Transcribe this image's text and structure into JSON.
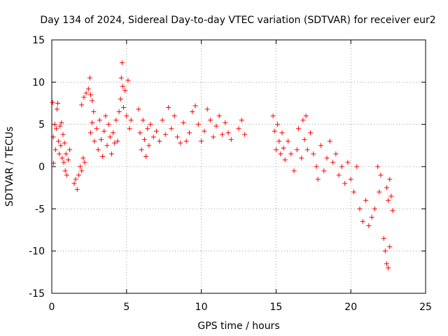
{
  "chart_data": {
    "type": "scatter",
    "title": "Day 134 of 2024, Sidereal Day-to-day VTEC variation (SDTVAR) for receiver eur2",
    "xlabel": "GPS time / hours",
    "ylabel": "SDTVAR / TECUs",
    "xlim": [
      0,
      25
    ],
    "ylim": [
      -15,
      15
    ],
    "xticks": [
      0,
      5,
      10,
      15,
      20,
      25
    ],
    "yticks": [
      -15,
      -10,
      -5,
      0,
      5,
      10,
      15
    ],
    "grid": true,
    "marker": "+",
    "marker_color": "#ff0000",
    "series": [
      {
        "name": "SDTVAR",
        "points": [
          [
            0.05,
            7.6
          ],
          [
            0.1,
            3.5
          ],
          [
            0.12,
            0.4
          ],
          [
            0.2,
            5.0
          ],
          [
            0.25,
            2.0
          ],
          [
            0.3,
            4.5
          ],
          [
            0.35,
            6.8
          ],
          [
            0.4,
            7.5
          ],
          [
            0.45,
            3.0
          ],
          [
            0.5,
            1.5
          ],
          [
            0.55,
            4.8
          ],
          [
            0.6,
            2.5
          ],
          [
            0.65,
            5.2
          ],
          [
            0.7,
            1.0
          ],
          [
            0.75,
            3.8
          ],
          [
            0.8,
            0.5
          ],
          [
            0.85,
            2.8
          ],
          [
            0.9,
            -0.5
          ],
          [
            0.95,
            1.5
          ],
          [
            1.0,
            -1.0
          ],
          [
            1.1,
            0.8
          ],
          [
            1.2,
            2.0
          ],
          [
            1.5,
            -2.0
          ],
          [
            1.6,
            -1.5
          ],
          [
            1.7,
            -2.7
          ],
          [
            1.8,
            -1.0
          ],
          [
            1.9,
            0.0
          ],
          [
            2.0,
            -0.5
          ],
          [
            2.1,
            1.0
          ],
          [
            2.2,
            0.5
          ],
          [
            2.0,
            7.3
          ],
          [
            2.15,
            8.2
          ],
          [
            2.3,
            8.7
          ],
          [
            2.45,
            9.2
          ],
          [
            2.55,
            10.5
          ],
          [
            2.6,
            8.5
          ],
          [
            2.7,
            7.8
          ],
          [
            2.8,
            6.5
          ],
          [
            2.6,
            4.0
          ],
          [
            2.7,
            5.2
          ],
          [
            2.85,
            3.0
          ],
          [
            3.0,
            4.5
          ],
          [
            3.1,
            2.0
          ],
          [
            3.2,
            5.5
          ],
          [
            3.3,
            3.2
          ],
          [
            3.4,
            1.2
          ],
          [
            3.5,
            4.2
          ],
          [
            3.6,
            6.0
          ],
          [
            3.7,
            2.5
          ],
          [
            3.8,
            5.0
          ],
          [
            3.9,
            3.5
          ],
          [
            4.0,
            1.5
          ],
          [
            4.1,
            4.0
          ],
          [
            4.2,
            2.8
          ],
          [
            4.3,
            5.5
          ],
          [
            4.4,
            3.0
          ],
          [
            4.5,
            6.5
          ],
          [
            4.6,
            8.0
          ],
          [
            4.65,
            10.5
          ],
          [
            4.7,
            12.3
          ],
          [
            4.75,
            9.5
          ],
          [
            4.8,
            7.0
          ],
          [
            4.9,
            9.0
          ],
          [
            5.0,
            6.0
          ],
          [
            5.1,
            10.2
          ],
          [
            5.2,
            4.5
          ],
          [
            5.3,
            5.5
          ],
          [
            5.8,
            6.8
          ],
          [
            5.9,
            4.0
          ],
          [
            6.0,
            2.0
          ],
          [
            6.1,
            5.5
          ],
          [
            6.2,
            3.2
          ],
          [
            6.3,
            1.2
          ],
          [
            6.4,
            4.5
          ],
          [
            6.5,
            2.5
          ],
          [
            6.6,
            5.0
          ],
          [
            6.8,
            3.5
          ],
          [
            7.0,
            4.2
          ],
          [
            7.2,
            3.0
          ],
          [
            7.4,
            5.5
          ],
          [
            7.6,
            3.8
          ],
          [
            7.8,
            7.0
          ],
          [
            8.0,
            4.5
          ],
          [
            8.2,
            6.0
          ],
          [
            8.4,
            3.5
          ],
          [
            8.6,
            2.8
          ],
          [
            8.8,
            5.2
          ],
          [
            9.0,
            3.0
          ],
          [
            9.2,
            4.0
          ],
          [
            9.4,
            6.5
          ],
          [
            9.6,
            7.2
          ],
          [
            9.8,
            5.0
          ],
          [
            10.0,
            3.0
          ],
          [
            10.2,
            4.2
          ],
          [
            10.4,
            6.8
          ],
          [
            10.6,
            5.5
          ],
          [
            10.8,
            3.5
          ],
          [
            11.0,
            4.8
          ],
          [
            11.2,
            6.0
          ],
          [
            11.4,
            3.8
          ],
          [
            11.6,
            5.2
          ],
          [
            11.8,
            4.0
          ],
          [
            12.0,
            3.2
          ],
          [
            12.5,
            4.5
          ],
          [
            12.7,
            5.5
          ],
          [
            12.9,
            3.8
          ],
          [
            14.8,
            6.0
          ],
          [
            14.9,
            4.2
          ],
          [
            15.0,
            2.0
          ],
          [
            15.1,
            5.0
          ],
          [
            15.2,
            3.0
          ],
          [
            15.3,
            1.5
          ],
          [
            15.4,
            4.0
          ],
          [
            15.5,
            2.2
          ],
          [
            15.6,
            0.8
          ],
          [
            15.8,
            3.0
          ],
          [
            16.0,
            1.5
          ],
          [
            16.2,
            -0.5
          ],
          [
            16.4,
            2.0
          ],
          [
            16.5,
            4.5
          ],
          [
            16.7,
            1.0
          ],
          [
            16.8,
            5.5
          ],
          [
            16.9,
            3.2
          ],
          [
            17.0,
            6.0
          ],
          [
            17.1,
            2.0
          ],
          [
            17.3,
            4.0
          ],
          [
            17.5,
            1.5
          ],
          [
            17.7,
            0.0
          ],
          [
            17.8,
            -1.5
          ],
          [
            18.0,
            2.5
          ],
          [
            18.2,
            -0.5
          ],
          [
            18.4,
            1.0
          ],
          [
            18.6,
            3.0
          ],
          [
            18.8,
            0.5
          ],
          [
            19.0,
            1.5
          ],
          [
            19.2,
            -1.0
          ],
          [
            19.4,
            0.0
          ],
          [
            19.6,
            -2.0
          ],
          [
            19.8,
            0.5
          ],
          [
            20.0,
            -1.5
          ],
          [
            20.2,
            -3.0
          ],
          [
            20.4,
            0.0
          ],
          [
            20.6,
            -5.0
          ],
          [
            20.8,
            -6.5
          ],
          [
            21.0,
            -4.0
          ],
          [
            21.2,
            -7.0
          ],
          [
            21.4,
            -6.0
          ],
          [
            21.6,
            -5.0
          ],
          [
            21.8,
            0.0
          ],
          [
            21.9,
            -3.0
          ],
          [
            22.0,
            -1.0
          ],
          [
            22.2,
            -8.5
          ],
          [
            22.3,
            -10.0
          ],
          [
            22.4,
            -11.5
          ],
          [
            22.5,
            -12.0
          ],
          [
            22.6,
            -9.5
          ],
          [
            22.4,
            -2.5
          ],
          [
            22.5,
            -4.0
          ],
          [
            22.6,
            -1.5
          ],
          [
            22.7,
            -3.5
          ],
          [
            22.8,
            -5.2
          ]
        ]
      }
    ]
  }
}
